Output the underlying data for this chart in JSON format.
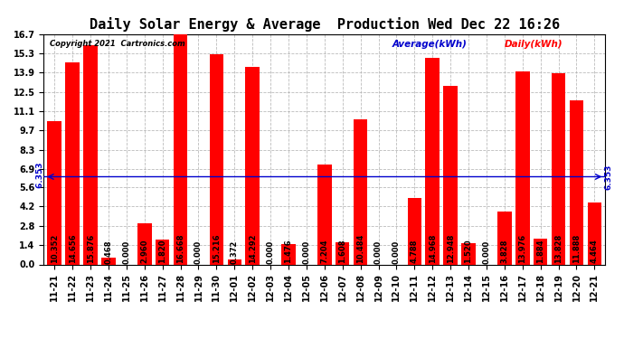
{
  "title": "Daily Solar Energy & Average  Production Wed Dec 22 16:26",
  "copyright": "Copyright 2021  Cartronics.com",
  "categories": [
    "11-21",
    "11-22",
    "11-23",
    "11-24",
    "11-25",
    "11-26",
    "11-27",
    "11-28",
    "11-29",
    "11-30",
    "12-01",
    "12-02",
    "12-03",
    "12-04",
    "12-05",
    "12-06",
    "12-07",
    "12-08",
    "12-09",
    "12-10",
    "12-11",
    "12-12",
    "12-13",
    "12-14",
    "12-15",
    "12-16",
    "12-17",
    "12-18",
    "12-19",
    "12-20",
    "12-21"
  ],
  "values": [
    10.352,
    14.656,
    15.876,
    0.468,
    0.0,
    2.96,
    1.82,
    16.668,
    0.0,
    15.216,
    0.372,
    14.292,
    0.0,
    1.476,
    0.0,
    7.204,
    1.608,
    10.484,
    0.0,
    0.0,
    4.788,
    14.968,
    12.948,
    1.52,
    0.0,
    3.828,
    13.976,
    1.884,
    13.828,
    11.888,
    4.464
  ],
  "average": 6.353,
  "bar_color": "#ff0000",
  "avg_line_color": "#0000cc",
  "bg_color": "#ffffff",
  "grid_color": "#aaaaaa",
  "ylim_max": 16.7,
  "yticks": [
    0.0,
    1.4,
    2.8,
    4.2,
    5.6,
    6.9,
    8.3,
    9.7,
    11.1,
    12.5,
    13.9,
    15.3,
    16.7
  ],
  "title_fontsize": 11,
  "label_fontsize": 6,
  "tick_fontsize": 7,
  "legend_avg_label": "Average(kWh)",
  "legend_daily_label": "Daily(kWh)"
}
